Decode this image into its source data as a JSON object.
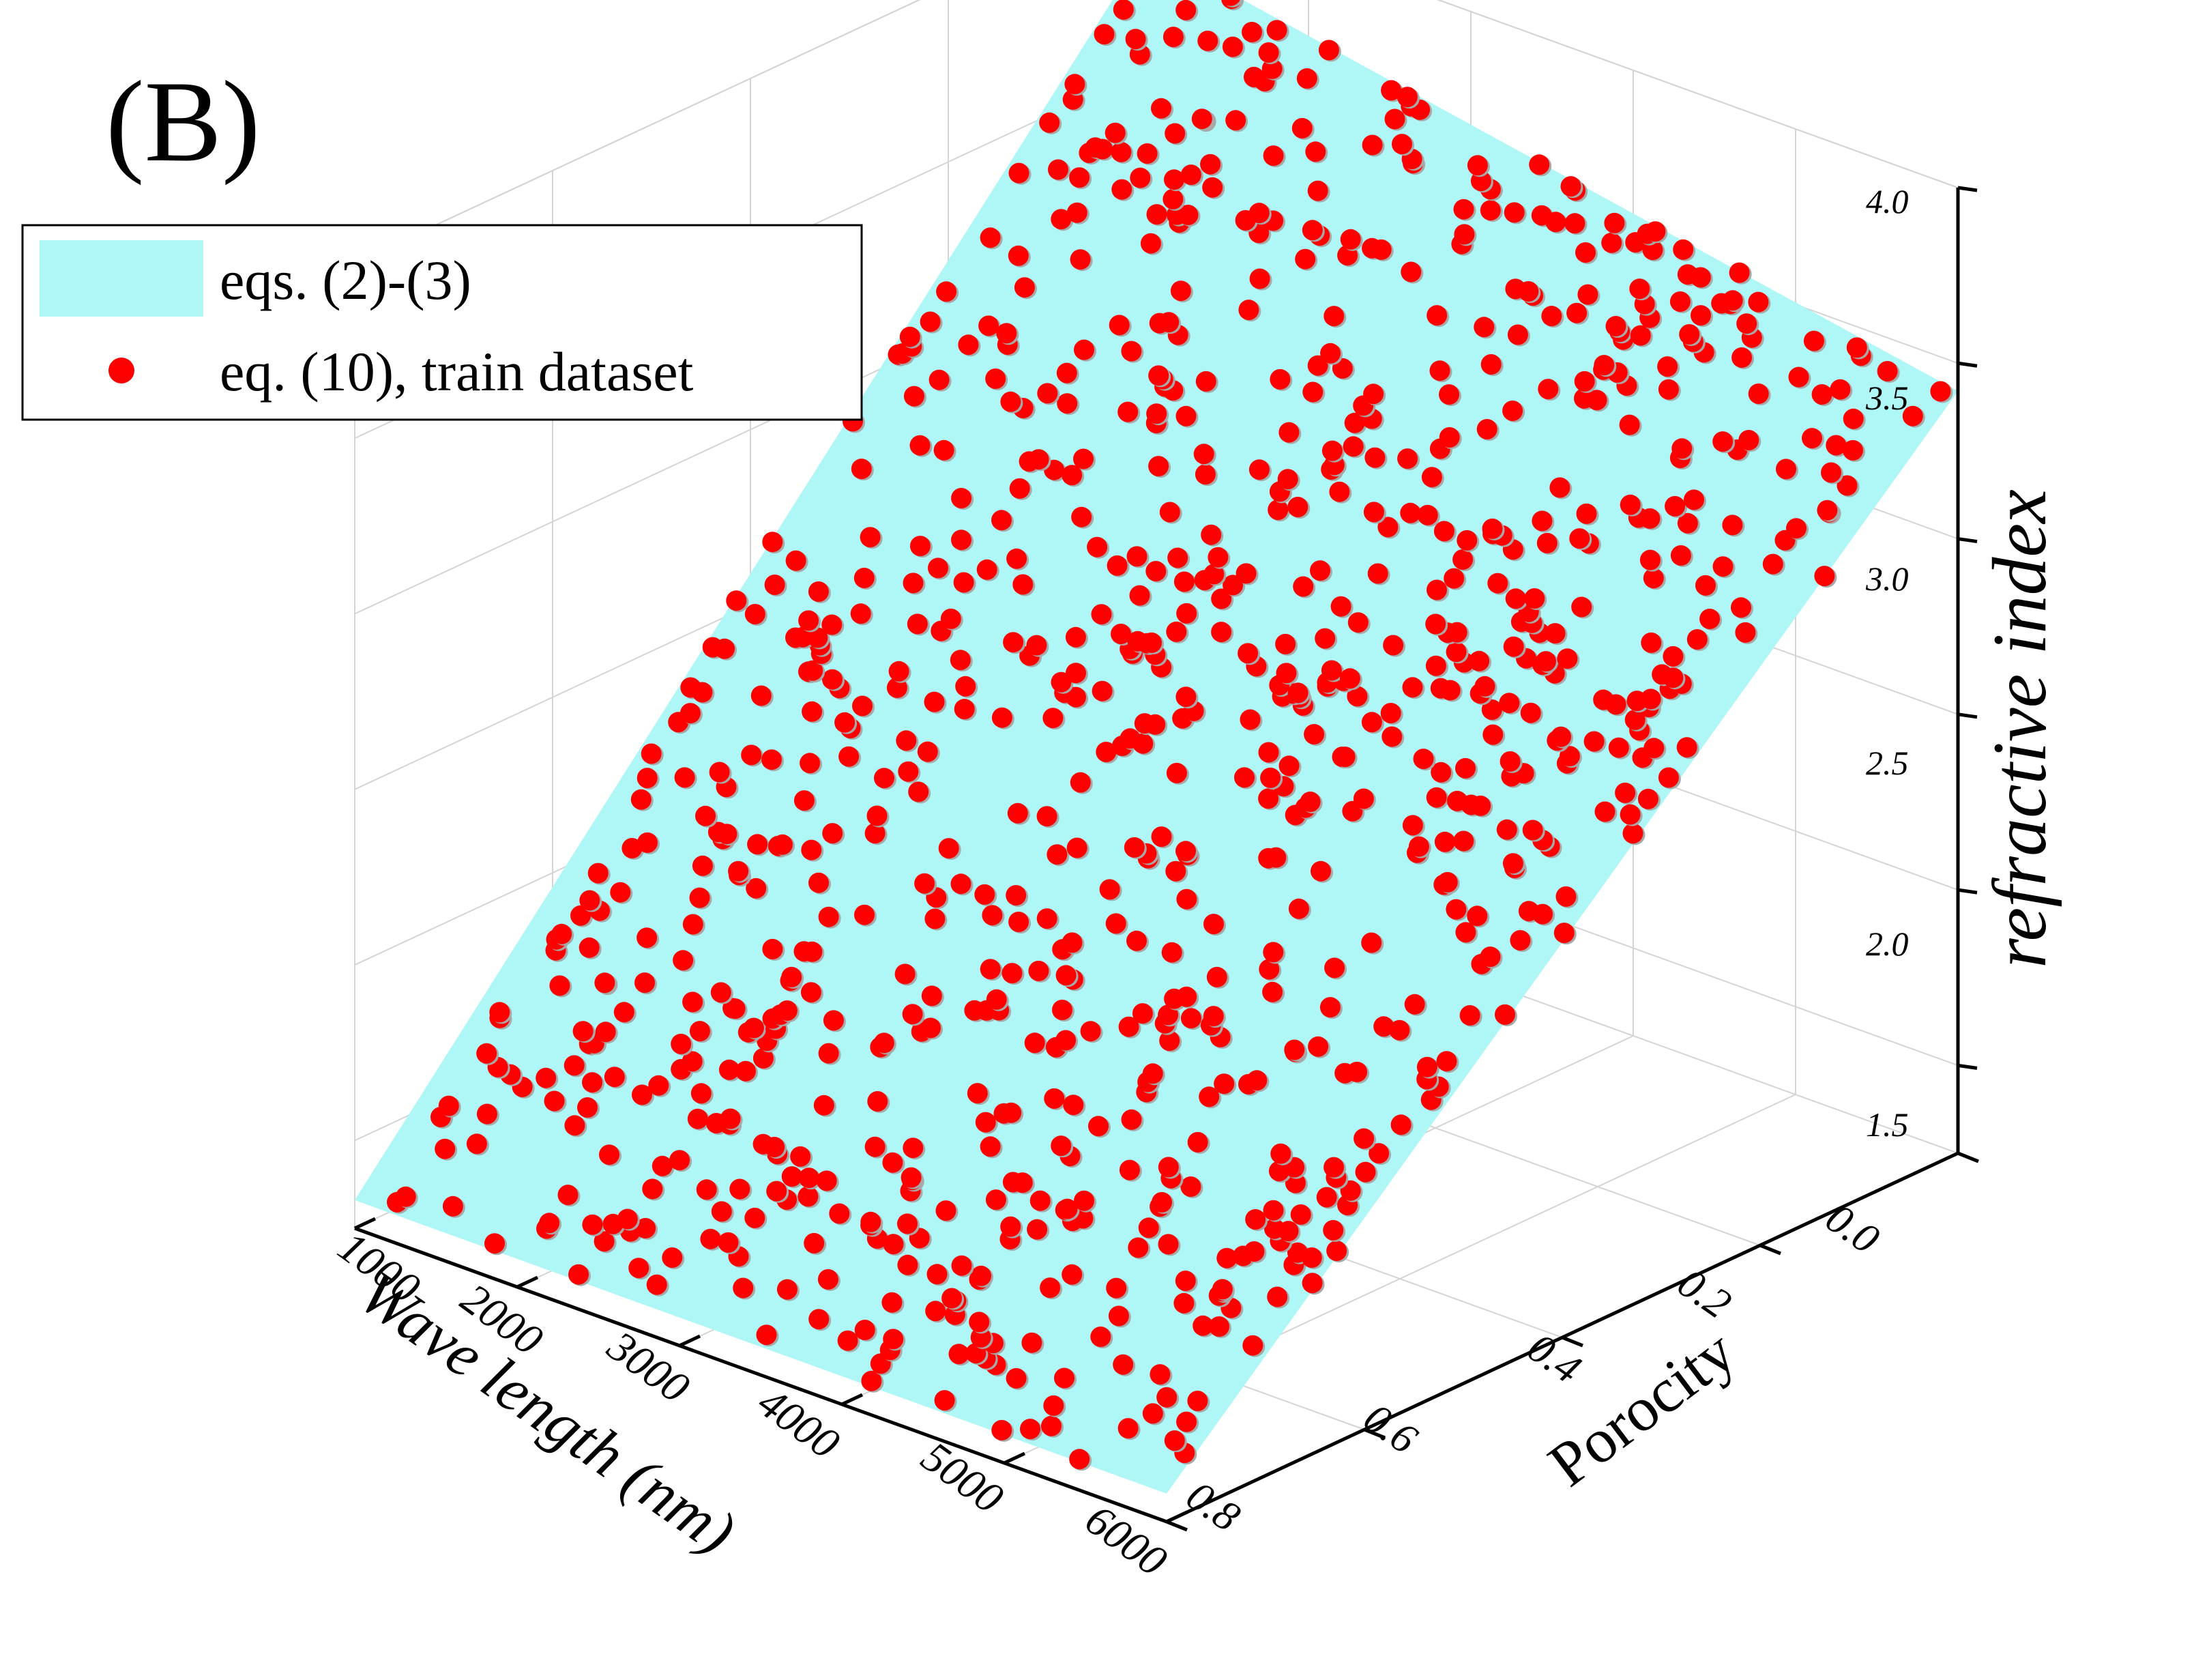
{
  "panel_label": "(B)",
  "colors": {
    "surface": "#aff7f7",
    "points": "#ff0000",
    "point_shadow": "#a8a8a8",
    "grid": "#d4d4d4",
    "axis": "#000000"
  },
  "legend": {
    "position": "top-left",
    "items": [
      {
        "label": "eqs. (2)-(3)",
        "marker": "cyan-rectangle"
      },
      {
        "label": "eq. (10), train dataset",
        "marker": "red-dot"
      }
    ]
  },
  "chart_data": {
    "type": "scatter",
    "view": "3d",
    "grid": true,
    "x_axis": {
      "label": "Wave length (nm)",
      "range": [
        1000,
        6000
      ],
      "ticks": [
        "1000",
        "2000",
        "3000",
        "4000",
        "5000",
        "6000"
      ]
    },
    "y_axis": {
      "label": "Porocity",
      "range": [
        0.0,
        0.8
      ],
      "ticks": [
        "0.0",
        "0.2",
        "0.4",
        "0.6",
        "0.8"
      ]
    },
    "z_axis": {
      "label": "refractive index",
      "range": [
        1.25,
        4.0
      ],
      "ticks": [
        "1.5",
        "2.0",
        "2.5",
        "3.0",
        "3.5",
        "4.0"
      ]
    },
    "series": [
      {
        "name": "eqs. (2)-(3)",
        "kind": "surface",
        "relation": "index increases as porosity decreases, nearly flat in wavelength",
        "corners": [
          {
            "wavelength": 1000,
            "porosity": 0.0,
            "index": 3.85
          },
          {
            "wavelength": 6000,
            "porosity": 0.0,
            "index": 3.42
          },
          {
            "wavelength": 1000,
            "porosity": 0.8,
            "index": 1.33
          },
          {
            "wavelength": 6000,
            "porosity": 0.8,
            "index": 1.33
          }
        ]
      },
      {
        "name": "eq. (10), train dataset",
        "kind": "points",
        "count_approx": 900,
        "distribution": "uniform random over wavelength 1000-6000 nm and porosity 0.0-0.8, lying on the surface"
      }
    ]
  }
}
